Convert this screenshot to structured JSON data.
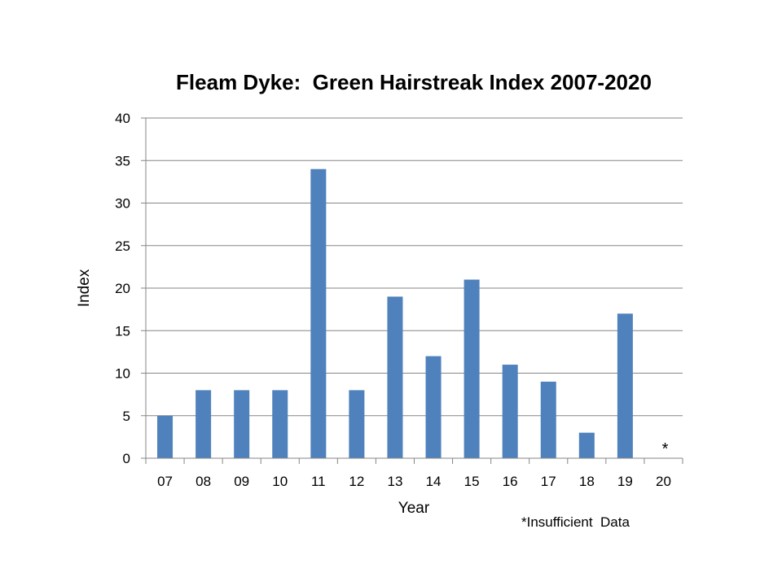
{
  "chart_data": {
    "type": "bar",
    "title": "Fleam Dyke:  Green Hairstreak Index 2007-2020",
    "xlabel": "Year",
    "ylabel": "Index",
    "categories": [
      "07",
      "08",
      "09",
      "10",
      "11",
      "12",
      "13",
      "14",
      "15",
      "16",
      "17",
      "18",
      "19",
      "20"
    ],
    "values": [
      5,
      8,
      8,
      8,
      34,
      8,
      19,
      12,
      21,
      11,
      9,
      3,
      17,
      null
    ],
    "ylim": [
      0,
      40
    ],
    "yticks": [
      0,
      5,
      10,
      15,
      20,
      25,
      30,
      35,
      40
    ],
    "grid": true,
    "bar_color": "#4f81bd",
    "missing_marker": "*",
    "footnote": "*Insufficient  Data"
  }
}
